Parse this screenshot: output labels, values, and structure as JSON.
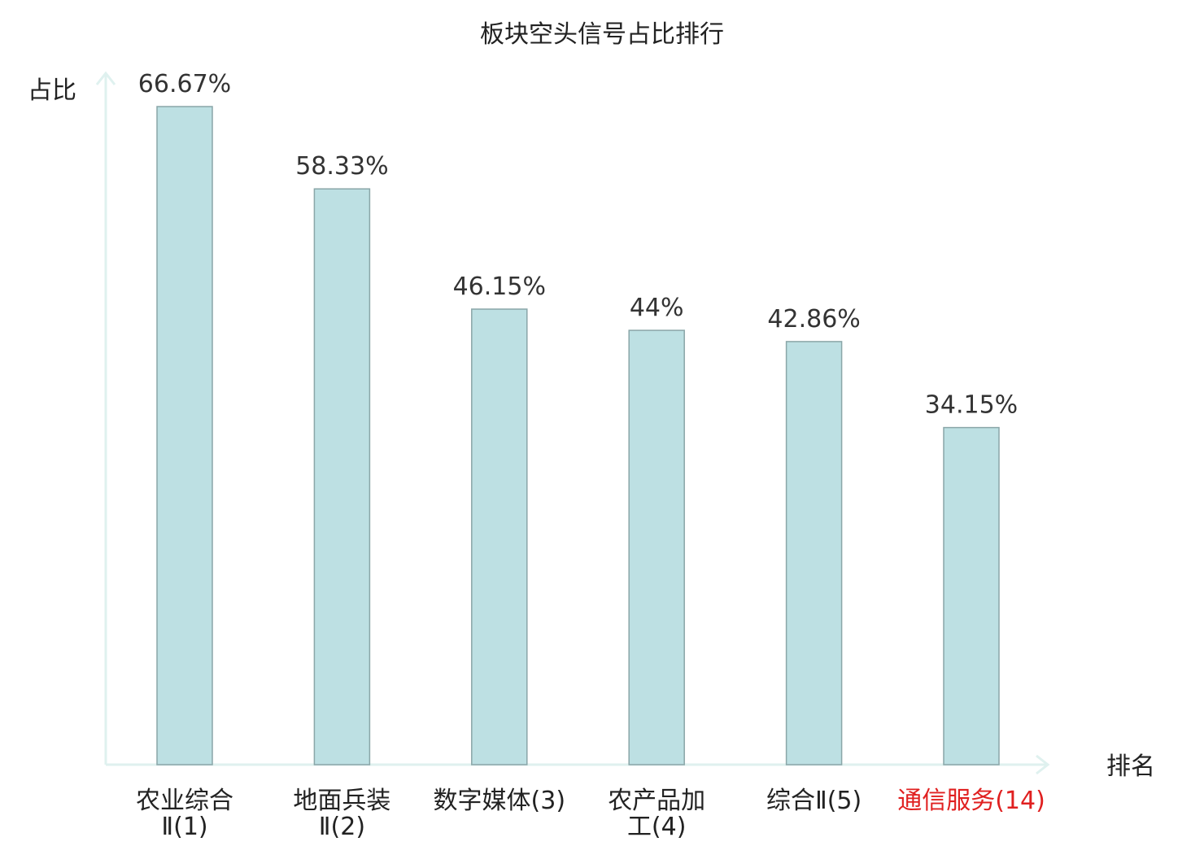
{
  "chart_data": {
    "type": "bar",
    "title": "板块空头信号占比排行",
    "xlabel": "排名",
    "ylabel": "占比",
    "ylim": [
      0,
      70
    ],
    "grid": false,
    "legend": "none",
    "categories": [
      {
        "name_lines": [
          "农业综合",
          "Ⅱ(1)"
        ],
        "highlight": false
      },
      {
        "name_lines": [
          "地面兵装",
          "Ⅱ(2)"
        ],
        "highlight": false
      },
      {
        "name_lines": [
          "数字媒体(3)"
        ],
        "highlight": false
      },
      {
        "name_lines": [
          "农产品加",
          "工(4)"
        ],
        "highlight": false
      },
      {
        "name_lines": [
          "综合Ⅱ(5)"
        ],
        "highlight": false
      },
      {
        "name_lines": [
          "通信服务(14)"
        ],
        "highlight": true
      }
    ],
    "values": [
      66.67,
      58.33,
      46.15,
      44,
      42.86,
      34.15
    ],
    "value_labels": [
      "66.67%",
      "58.33%",
      "46.15%",
      "44%",
      "42.86%",
      "34.15%"
    ],
    "colors": {
      "bar_fill": "#bde0e3",
      "bar_stroke": "#8aa6a8",
      "axis": "#dff1ef",
      "highlight_text": "#e02020",
      "text": "#222222"
    }
  }
}
